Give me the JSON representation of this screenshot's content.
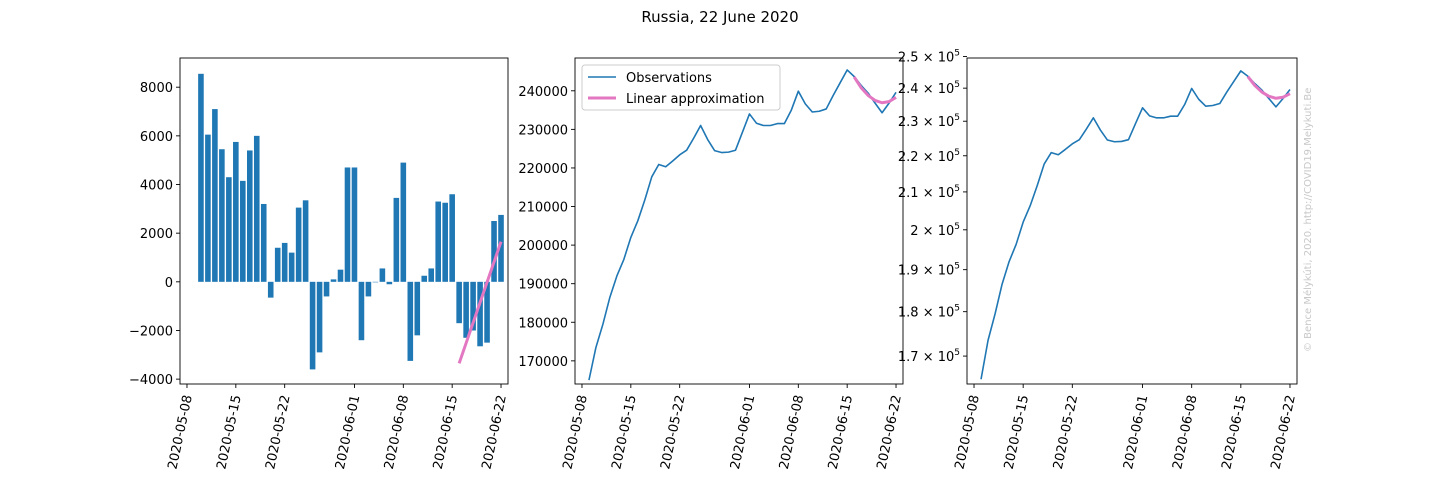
{
  "figure": {
    "title": "Russia, 22 June 2020",
    "credit": "© Bence Mélykúti, 2020. http://COVID19.Melykuti.Be"
  },
  "colors": {
    "observations": "#1f77b4",
    "approximation": "#e377c2"
  },
  "chart_data": [
    {
      "type": "bar",
      "title": "",
      "xlabel": "",
      "ylabel": "",
      "x": [
        "2020-05-10",
        "2020-05-11",
        "2020-05-12",
        "2020-05-13",
        "2020-05-14",
        "2020-05-15",
        "2020-05-16",
        "2020-05-17",
        "2020-05-18",
        "2020-05-19",
        "2020-05-20",
        "2020-05-21",
        "2020-05-22",
        "2020-05-23",
        "2020-05-24",
        "2020-05-25",
        "2020-05-26",
        "2020-05-27",
        "2020-05-28",
        "2020-05-29",
        "2020-05-30",
        "2020-05-31",
        "2020-06-01",
        "2020-06-02",
        "2020-06-03",
        "2020-06-04",
        "2020-06-05",
        "2020-06-06",
        "2020-06-07",
        "2020-06-08",
        "2020-06-09",
        "2020-06-10",
        "2020-06-11",
        "2020-06-12",
        "2020-06-13",
        "2020-06-14",
        "2020-06-15",
        "2020-06-16",
        "2020-06-17",
        "2020-06-18",
        "2020-06-19",
        "2020-06-20",
        "2020-06-21",
        "2020-06-22"
      ],
      "values": [
        8550,
        6050,
        7100,
        5450,
        4300,
        5750,
        4150,
        5400,
        6000,
        3200,
        -650,
        1400,
        1600,
        1200,
        3050,
        3350,
        -3600,
        -2900,
        -600,
        100,
        500,
        4700,
        4700,
        -2400,
        -600,
        0,
        550,
        -100,
        3450,
        4900,
        -3250,
        -2200,
        250,
        550,
        3300,
        3250,
        3600,
        -1700,
        -2300,
        -2000,
        -2650,
        -2500,
        2500,
        2750
      ],
      "fits": [
        {
          "name": "Linear approximation",
          "x": [
            "2020-06-16",
            "2020-06-22"
          ],
          "values": [
            -3350,
            1650
          ]
        }
      ],
      "ylim": [
        -4200,
        9200
      ],
      "yticks": [
        -4000,
        -2000,
        0,
        2000,
        4000,
        6000,
        8000
      ],
      "ytick_labels": [
        "−4000",
        "−2000",
        "0",
        "2000",
        "4000",
        "6000",
        "8000"
      ],
      "xticks": [
        "2020-05-08",
        "2020-05-15",
        "2020-05-22",
        "2020-06-01",
        "2020-06-08",
        "2020-06-15",
        "2020-06-22"
      ],
      "grid": false
    },
    {
      "type": "line",
      "title": "",
      "xlabel": "",
      "ylabel": "",
      "x": [
        "2020-05-09",
        "2020-05-10",
        "2020-05-11",
        "2020-05-12",
        "2020-05-13",
        "2020-05-14",
        "2020-05-15",
        "2020-05-16",
        "2020-05-17",
        "2020-05-18",
        "2020-05-19",
        "2020-05-20",
        "2020-05-21",
        "2020-05-22",
        "2020-05-23",
        "2020-05-24",
        "2020-05-25",
        "2020-05-26",
        "2020-05-27",
        "2020-05-28",
        "2020-05-29",
        "2020-05-30",
        "2020-05-31",
        "2020-06-01",
        "2020-06-02",
        "2020-06-03",
        "2020-06-04",
        "2020-06-05",
        "2020-06-06",
        "2020-06-07",
        "2020-06-08",
        "2020-06-09",
        "2020-06-10",
        "2020-06-11",
        "2020-06-12",
        "2020-06-13",
        "2020-06-14",
        "2020-06-15",
        "2020-06-16",
        "2020-06-17",
        "2020-06-18",
        "2020-06-19",
        "2020-06-20",
        "2020-06-21",
        "2020-06-22"
      ],
      "series": [
        {
          "name": "Observations",
          "values": [
            165000,
            173500,
            179500,
            186500,
            192000,
            196300,
            202000,
            206300,
            211700,
            217700,
            220900,
            220300,
            221800,
            223400,
            224600,
            227700,
            231000,
            227400,
            224500,
            224000,
            224100,
            224600,
            229300,
            234000,
            231600,
            231000,
            231000,
            231500,
            231500,
            235000,
            239900,
            236600,
            234500,
            234700,
            235300,
            238800,
            242100,
            245400,
            243700,
            241400,
            239400,
            236800,
            234300,
            236800,
            239600
          ]
        }
      ],
      "fits": [
        {
          "name": "Linear approximation",
          "x": [
            "2020-06-16",
            "2020-06-17",
            "2020-06-18",
            "2020-06-19",
            "2020-06-20",
            "2020-06-21",
            "2020-06-22"
          ],
          "values": [
            243600,
            240800,
            238800,
            237500,
            236900,
            237200,
            238300
          ]
        }
      ],
      "legend": {
        "placement": "top-left",
        "entries": [
          "Observations",
          "Linear approximation"
        ]
      },
      "ylim": [
        164000,
        248500
      ],
      "yticks": [
        170000,
        180000,
        190000,
        200000,
        210000,
        220000,
        230000,
        240000
      ],
      "ytick_labels": [
        "170000",
        "180000",
        "190000",
        "200000",
        "210000",
        "220000",
        "230000",
        "240000"
      ],
      "xticks": [
        "2020-05-08",
        "2020-05-15",
        "2020-05-22",
        "2020-06-01",
        "2020-06-08",
        "2020-06-15",
        "2020-06-22"
      ],
      "grid": false
    },
    {
      "type": "line",
      "title": "",
      "xlabel": "",
      "ylabel": "",
      "yscale": "log",
      "x": [
        "2020-05-09",
        "2020-05-10",
        "2020-05-11",
        "2020-05-12",
        "2020-05-13",
        "2020-05-14",
        "2020-05-15",
        "2020-05-16",
        "2020-05-17",
        "2020-05-18",
        "2020-05-19",
        "2020-05-20",
        "2020-05-21",
        "2020-05-22",
        "2020-05-23",
        "2020-05-24",
        "2020-05-25",
        "2020-05-26",
        "2020-05-27",
        "2020-05-28",
        "2020-05-29",
        "2020-05-30",
        "2020-05-31",
        "2020-06-01",
        "2020-06-02",
        "2020-06-03",
        "2020-06-04",
        "2020-06-05",
        "2020-06-06",
        "2020-06-07",
        "2020-06-08",
        "2020-06-09",
        "2020-06-10",
        "2020-06-11",
        "2020-06-12",
        "2020-06-13",
        "2020-06-14",
        "2020-06-15",
        "2020-06-16",
        "2020-06-17",
        "2020-06-18",
        "2020-06-19",
        "2020-06-20",
        "2020-06-21",
        "2020-06-22"
      ],
      "series": [
        {
          "name": "Observations",
          "values": [
            165000,
            173500,
            179500,
            186500,
            192000,
            196300,
            202000,
            206300,
            211700,
            217700,
            220900,
            220300,
            221800,
            223400,
            224600,
            227700,
            231000,
            227400,
            224500,
            224000,
            224100,
            224600,
            229300,
            234000,
            231600,
            231000,
            231000,
            231500,
            231500,
            235000,
            239900,
            236600,
            234500,
            234700,
            235300,
            238800,
            242100,
            245400,
            243700,
            241400,
            239400,
            236800,
            234300,
            236800,
            239600
          ]
        }
      ],
      "fits": [
        {
          "name": "Linear approximation",
          "x": [
            "2020-06-16",
            "2020-06-17",
            "2020-06-18",
            "2020-06-19",
            "2020-06-20",
            "2020-06-21",
            "2020-06-22"
          ],
          "values": [
            243600,
            240800,
            238800,
            237500,
            236900,
            237200,
            238300
          ]
        }
      ],
      "ylim": [
        164000,
        249500
      ],
      "yticks": [
        170000,
        180000,
        190000,
        200000,
        210000,
        220000,
        230000,
        240000,
        250000
      ],
      "ytick_labels": [
        {
          "base": "1.7 × 10",
          "exp": "5"
        },
        {
          "base": "1.8 × 10",
          "exp": "5"
        },
        {
          "base": "1.9 × 10",
          "exp": "5"
        },
        {
          "base": "2 × 10",
          "exp": "5"
        },
        {
          "base": "2.1 × 10",
          "exp": "5"
        },
        {
          "base": "2.2 × 10",
          "exp": "5"
        },
        {
          "base": "2.3 × 10",
          "exp": "5"
        },
        {
          "base": "2.4 × 10",
          "exp": "5"
        },
        {
          "base": "2.5 × 10",
          "exp": "5"
        }
      ],
      "xticks": [
        "2020-05-08",
        "2020-05-15",
        "2020-05-22",
        "2020-06-01",
        "2020-06-08",
        "2020-06-15",
        "2020-06-22"
      ],
      "grid": false
    }
  ]
}
